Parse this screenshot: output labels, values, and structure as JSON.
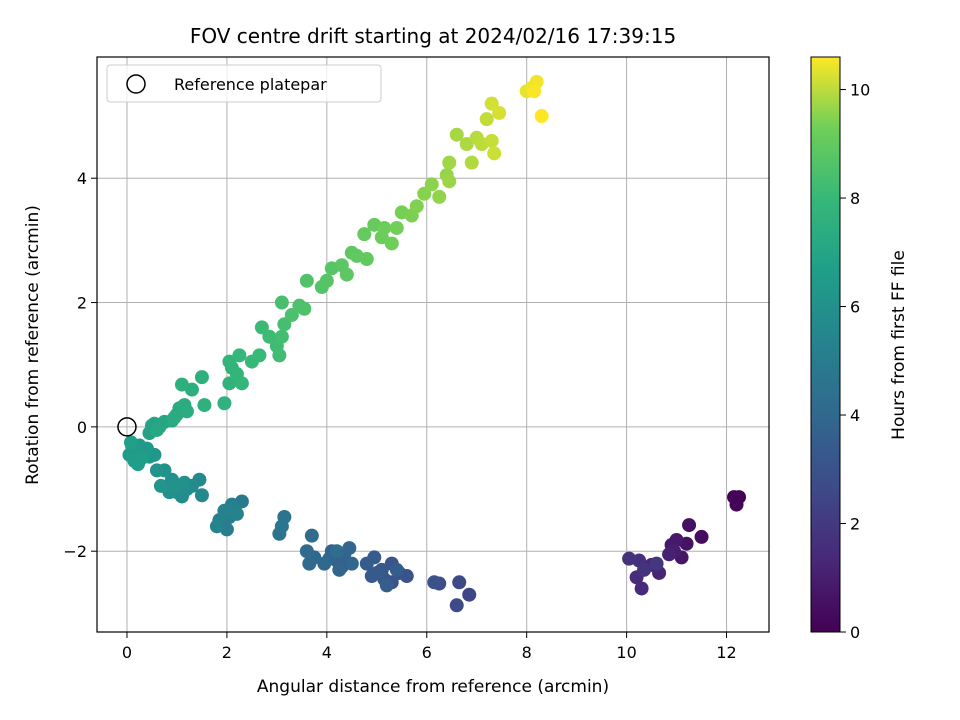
{
  "chart_data": {
    "type": "scatter",
    "title": "FOV centre drift starting at 2024/02/16 17:39:15",
    "xlabel": "Angular distance from reference (arcmin)",
    "ylabel": "Rotation from reference (arcmin)",
    "xlim": [
      -0.6,
      12.85
    ],
    "ylim": [
      -3.3,
      5.95
    ],
    "xticks": [
      0,
      2,
      4,
      6,
      8,
      10,
      12
    ],
    "yticks": [
      -2,
      0,
      2,
      4
    ],
    "grid": true,
    "legend": {
      "position": "top-left",
      "entries": [
        "Reference platepar"
      ]
    },
    "reference_point": {
      "x": 0,
      "y": 0
    },
    "colorbar": {
      "label": "Hours from first FF file",
      "range": [
        0,
        10.6
      ],
      "ticks": [
        0,
        2,
        4,
        6,
        8,
        10
      ],
      "colormap": "viridis"
    },
    "points": [
      [
        12.15,
        -1.13,
        0.0
      ],
      [
        12.25,
        -1.13,
        0.05
      ],
      [
        12.2,
        -1.25,
        0.1
      ],
      [
        12.18,
        -1.15,
        0.15
      ],
      [
        11.5,
        -1.77,
        0.4
      ],
      [
        11.25,
        -1.58,
        0.5
      ],
      [
        11.2,
        -1.88,
        0.6
      ],
      [
        11.1,
        -2.1,
        0.7
      ],
      [
        11.0,
        -1.82,
        0.8
      ],
      [
        10.9,
        -1.9,
        0.9
      ],
      [
        10.95,
        -2.0,
        1.0
      ],
      [
        10.85,
        -2.05,
        1.1
      ],
      [
        10.65,
        -2.35,
        1.2
      ],
      [
        10.5,
        -2.22,
        1.3
      ],
      [
        10.3,
        -2.6,
        1.4
      ],
      [
        10.2,
        -2.42,
        1.5
      ],
      [
        10.25,
        -2.15,
        1.6
      ],
      [
        10.05,
        -2.12,
        1.7
      ],
      [
        10.35,
        -2.3,
        1.8
      ],
      [
        10.6,
        -2.2,
        1.9
      ],
      [
        6.85,
        -2.7,
        2.5
      ],
      [
        6.65,
        -2.5,
        2.6
      ],
      [
        6.6,
        -2.87,
        2.7
      ],
      [
        6.25,
        -2.52,
        2.8
      ],
      [
        6.15,
        -2.5,
        2.9
      ],
      [
        5.6,
        -2.4,
        3.0
      ],
      [
        5.45,
        -2.35,
        3.05
      ],
      [
        5.3,
        -2.5,
        3.1
      ],
      [
        5.3,
        -2.2,
        3.15
      ],
      [
        5.15,
        -2.45,
        3.2
      ],
      [
        5.1,
        -2.3,
        3.25
      ],
      [
        5.0,
        -2.35,
        3.3
      ],
      [
        4.9,
        -2.4,
        3.35
      ],
      [
        4.95,
        -2.1,
        3.4
      ],
      [
        4.8,
        -2.2,
        3.45
      ],
      [
        5.2,
        -2.55,
        3.5
      ],
      [
        5.4,
        -2.3,
        3.55
      ],
      [
        4.3,
        -2.25,
        3.6
      ],
      [
        4.2,
        -2.15,
        3.65
      ],
      [
        4.1,
        -2.0,
        3.7
      ],
      [
        4.35,
        -2.05,
        3.75
      ],
      [
        4.25,
        -2.3,
        3.8
      ],
      [
        4.05,
        -2.12,
        3.85
      ],
      [
        4.45,
        -1.95,
        3.9
      ],
      [
        4.5,
        -2.2,
        3.95
      ],
      [
        3.95,
        -2.2,
        4.0
      ],
      [
        3.75,
        -2.1,
        4.05
      ],
      [
        3.65,
        -2.2,
        4.1
      ],
      [
        3.6,
        -2.0,
        4.15
      ],
      [
        3.7,
        -1.75,
        4.2
      ],
      [
        4.2,
        -2.0,
        4.25
      ],
      [
        3.15,
        -1.45,
        4.5
      ],
      [
        3.05,
        -1.72,
        4.6
      ],
      [
        3.1,
        -1.6,
        4.7
      ],
      [
        2.3,
        -1.2,
        4.9
      ],
      [
        2.1,
        -1.25,
        5.0
      ],
      [
        2.0,
        -1.65,
        5.05
      ],
      [
        1.9,
        -1.55,
        5.1
      ],
      [
        2.05,
        -1.45,
        5.15
      ],
      [
        1.85,
        -1.5,
        5.2
      ],
      [
        2.15,
        -1.3,
        5.25
      ],
      [
        1.95,
        -1.35,
        5.3
      ],
      [
        2.2,
        -1.4,
        5.35
      ],
      [
        1.8,
        -1.6,
        5.4
      ],
      [
        1.5,
        -1.1,
        5.6
      ],
      [
        1.45,
        -0.85,
        5.65
      ],
      [
        1.3,
        -0.95,
        5.7
      ],
      [
        1.2,
        -1.0,
        5.75
      ],
      [
        1.1,
        -1.12,
        5.8
      ],
      [
        1.0,
        -1.05,
        5.85
      ],
      [
        0.9,
        -0.85,
        5.9
      ],
      [
        0.85,
        -1.05,
        5.95
      ],
      [
        1.15,
        -0.9,
        6.0
      ],
      [
        0.95,
        -0.95,
        6.05
      ],
      [
        0.75,
        -0.7,
        6.1
      ],
      [
        0.6,
        -0.7,
        6.15
      ],
      [
        0.68,
        -0.95,
        6.2
      ],
      [
        0.55,
        -0.45,
        6.25
      ],
      [
        0.45,
        -0.48,
        6.3
      ],
      [
        0.4,
        -0.35,
        6.35
      ],
      [
        0.25,
        -0.3,
        6.4
      ],
      [
        0.18,
        -0.4,
        6.45
      ],
      [
        0.1,
        -0.3,
        6.5
      ],
      [
        0.05,
        -0.45,
        6.55
      ],
      [
        0.15,
        -0.55,
        6.6
      ],
      [
        0.22,
        -0.6,
        6.65
      ],
      [
        0.3,
        -0.5,
        6.7
      ],
      [
        0.08,
        -0.25,
        6.75
      ],
      [
        0.45,
        -0.1,
        6.85
      ],
      [
        0.5,
        0.02,
        6.9
      ],
      [
        0.55,
        0.05,
        6.95
      ],
      [
        0.65,
        0.0,
        7.0
      ],
      [
        0.75,
        0.08,
        7.05
      ],
      [
        0.6,
        -0.05,
        7.1
      ],
      [
        0.9,
        0.1,
        7.15
      ],
      [
        1.0,
        0.2,
        7.2
      ],
      [
        1.05,
        0.3,
        7.25
      ],
      [
        0.95,
        0.15,
        7.3
      ],
      [
        1.15,
        0.35,
        7.35
      ],
      [
        1.2,
        0.25,
        7.4
      ],
      [
        1.3,
        0.6,
        7.45
      ],
      [
        1.1,
        0.68,
        7.5
      ],
      [
        1.5,
        0.8,
        7.55
      ],
      [
        1.55,
        0.35,
        7.6
      ],
      [
        1.95,
        0.38,
        7.65
      ],
      [
        2.05,
        0.7,
        7.7
      ],
      [
        2.1,
        0.95,
        7.75
      ],
      [
        2.05,
        1.05,
        7.8
      ],
      [
        2.2,
        0.85,
        7.85
      ],
      [
        2.3,
        0.7,
        7.9
      ],
      [
        2.25,
        1.15,
        7.95
      ],
      [
        2.5,
        1.05,
        8.0
      ],
      [
        2.65,
        1.15,
        8.05
      ],
      [
        2.7,
        1.6,
        8.1
      ],
      [
        2.85,
        1.45,
        8.15
      ],
      [
        3.0,
        1.3,
        8.2
      ],
      [
        3.05,
        1.15,
        8.25
      ],
      [
        3.1,
        1.45,
        8.3
      ],
      [
        3.15,
        1.65,
        8.35
      ],
      [
        3.1,
        2.0,
        8.4
      ],
      [
        3.3,
        1.8,
        8.45
      ],
      [
        3.45,
        1.95,
        8.5
      ],
      [
        3.55,
        1.9,
        8.55
      ],
      [
        3.6,
        2.35,
        8.6
      ],
      [
        3.9,
        2.25,
        8.65
      ],
      [
        4.0,
        2.35,
        8.7
      ],
      [
        4.1,
        2.55,
        8.75
      ],
      [
        4.3,
        2.6,
        8.8
      ],
      [
        4.4,
        2.45,
        8.85
      ],
      [
        4.5,
        2.8,
        8.9
      ],
      [
        4.6,
        2.75,
        8.95
      ],
      [
        4.8,
        2.7,
        9.0
      ],
      [
        4.75,
        3.1,
        9.05
      ],
      [
        4.95,
        3.25,
        9.1
      ],
      [
        5.1,
        3.05,
        9.15
      ],
      [
        5.15,
        3.2,
        9.2
      ],
      [
        5.3,
        2.95,
        9.25
      ],
      [
        5.4,
        3.2,
        9.3
      ],
      [
        5.5,
        3.45,
        9.35
      ],
      [
        5.7,
        3.4,
        9.4
      ],
      [
        5.8,
        3.55,
        9.45
      ],
      [
        5.95,
        3.75,
        9.5
      ],
      [
        6.1,
        3.9,
        9.55
      ],
      [
        6.25,
        3.7,
        9.6
      ],
      [
        6.4,
        4.05,
        9.65
      ],
      [
        6.45,
        3.95,
        9.7
      ],
      [
        6.45,
        4.25,
        9.75
      ],
      [
        6.6,
        4.7,
        9.8
      ],
      [
        6.8,
        4.55,
        9.85
      ],
      [
        6.9,
        4.25,
        9.9
      ],
      [
        7.0,
        4.65,
        9.95
      ],
      [
        7.1,
        4.55,
        10.0
      ],
      [
        7.2,
        4.95,
        10.05
      ],
      [
        7.3,
        4.6,
        10.1
      ],
      [
        7.35,
        4.4,
        10.15
      ],
      [
        7.3,
        5.2,
        10.2
      ],
      [
        7.45,
        5.05,
        10.25
      ],
      [
        8.0,
        5.4,
        10.4
      ],
      [
        8.1,
        5.45,
        10.45
      ],
      [
        8.2,
        5.55,
        10.5
      ],
      [
        8.15,
        5.4,
        10.55
      ],
      [
        8.3,
        5.0,
        10.6
      ]
    ]
  }
}
